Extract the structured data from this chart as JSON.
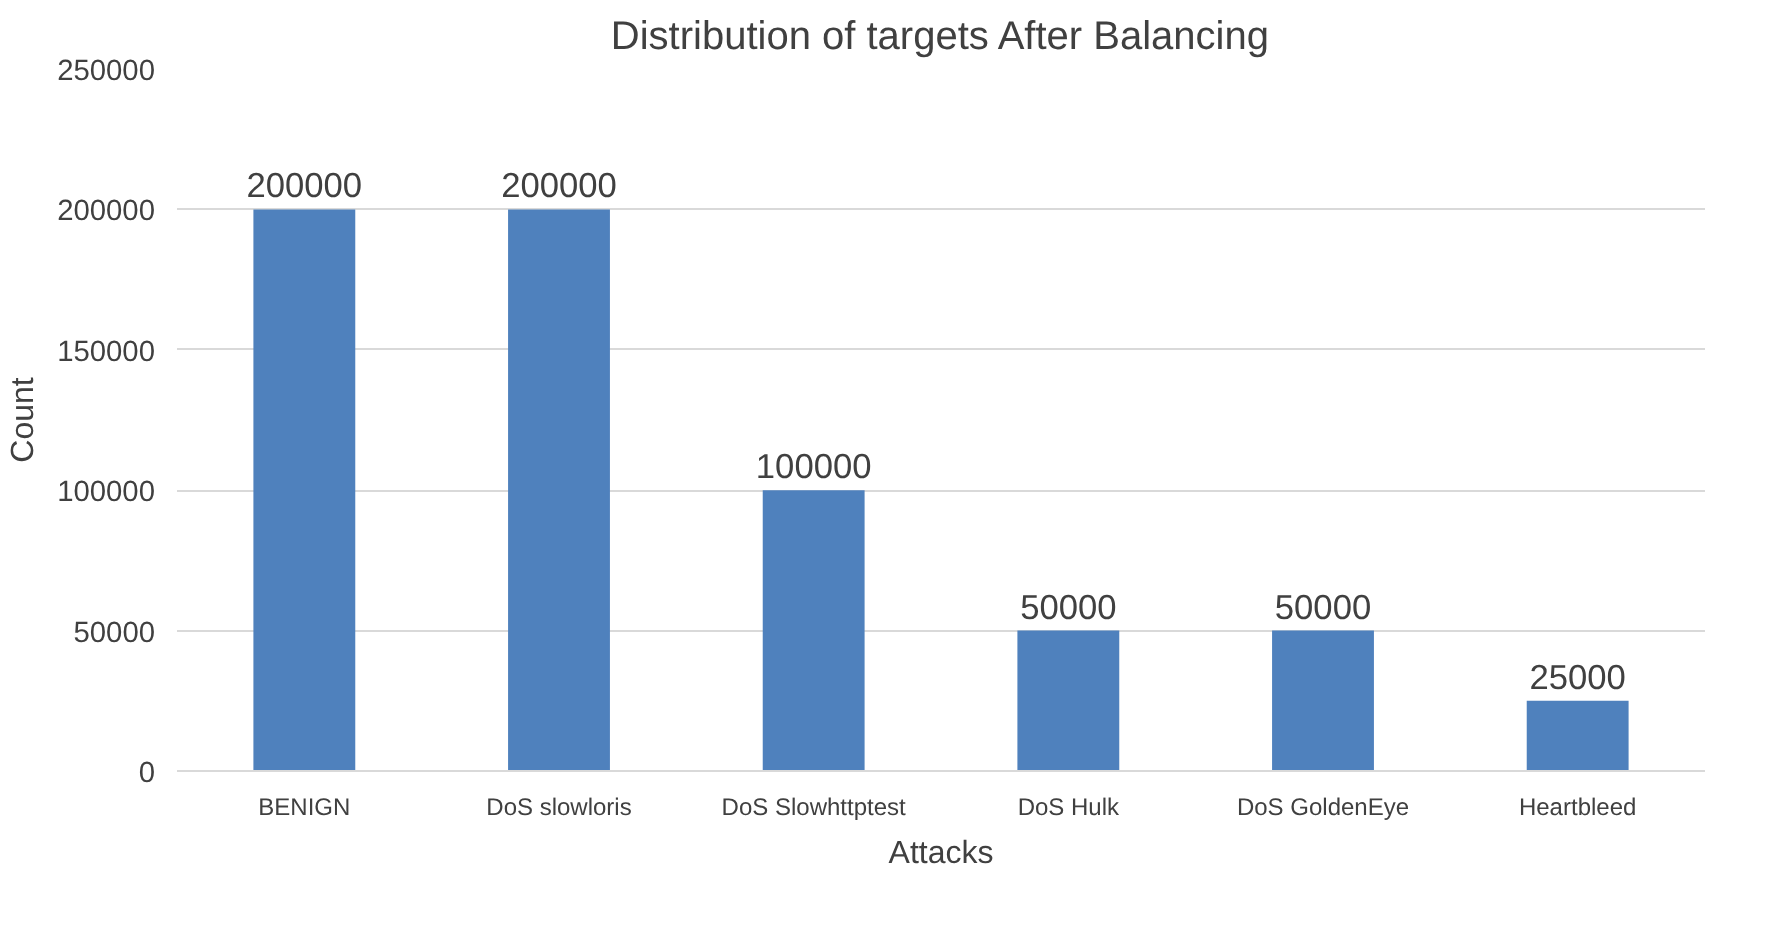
{
  "chart_data": {
    "type": "bar",
    "title": "Distribution of targets After Balancing",
    "xlabel": "Attacks",
    "ylabel": "Count",
    "categories": [
      "BENIGN",
      "DoS slowloris",
      "DoS Slowhttptest",
      "DoS Hulk",
      "DoS GoldenEye",
      "Heartbleed"
    ],
    "values": [
      200000,
      200000,
      100000,
      50000,
      50000,
      25000
    ],
    "color": "#4f81bd",
    "ylim": [
      0,
      250000
    ],
    "yticks": [
      0,
      50000,
      100000,
      150000,
      200000,
      250000
    ],
    "grid": "y",
    "data_labels": true
  }
}
